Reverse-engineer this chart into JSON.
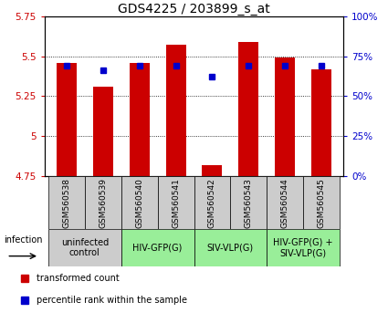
{
  "title": "GDS4225 / 203899_s_at",
  "samples": [
    "GSM560538",
    "GSM560539",
    "GSM560540",
    "GSM560541",
    "GSM560542",
    "GSM560543",
    "GSM560544",
    "GSM560545"
  ],
  "red_values": [
    5.46,
    5.31,
    5.46,
    5.57,
    4.82,
    5.59,
    5.49,
    5.42
  ],
  "blue_values": [
    69,
    66,
    69,
    69,
    62,
    69,
    69,
    69
  ],
  "ylim_left": [
    4.75,
    5.75
  ],
  "ylim_right": [
    0,
    100
  ],
  "yticks_left": [
    4.75,
    5.0,
    5.25,
    5.5,
    5.75
  ],
  "yticks_right": [
    0,
    25,
    50,
    75,
    100
  ],
  "ytick_labels_left": [
    "4.75",
    "5",
    "5.25",
    "5.5",
    "5.75"
  ],
  "ytick_labels_right": [
    "0%",
    "25%",
    "50%",
    "75%",
    "100%"
  ],
  "bar_color": "#cc0000",
  "dot_color": "#0000cc",
  "bar_width": 0.55,
  "sample_box_color": "#cccccc",
  "group_configs": [
    {
      "start": 0,
      "end": 2,
      "color": "#cccccc",
      "label": "uninfected\ncontrol"
    },
    {
      "start": 2,
      "end": 4,
      "color": "#99ee99",
      "label": "HIV-GFP(G)"
    },
    {
      "start": 4,
      "end": 6,
      "color": "#99ee99",
      "label": "SIV-VLP(G)"
    },
    {
      "start": 6,
      "end": 8,
      "color": "#99ee99",
      "label": "HIV-GFP(G) +\nSIV-VLP(G)"
    }
  ],
  "title_fontsize": 10,
  "tick_fontsize": 7.5,
  "sample_fontsize": 6.5,
  "group_fontsize": 7,
  "legend_fontsize": 7,
  "infection_fontsize": 7
}
